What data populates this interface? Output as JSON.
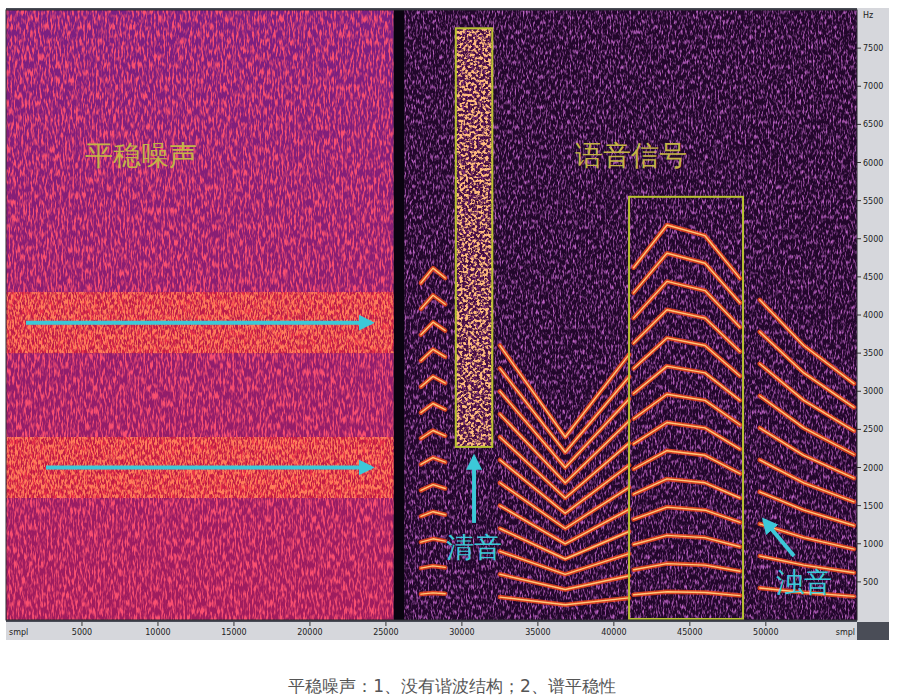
{
  "chart_data": {
    "type": "spectrogram",
    "caption": "平稳噪声：1、没有谐波结构；2、谱平稳性",
    "x_label": "smpl",
    "y_label": "Hz",
    "xlim": [
      0,
      56000
    ],
    "xticks": [
      5000,
      10000,
      15000,
      20000,
      25000,
      30000,
      35000,
      40000,
      45000,
      50000
    ],
    "ylim": [
      0,
      8000
    ],
    "yticks": [
      500,
      1000,
      1500,
      2000,
      2500,
      3000,
      3500,
      4000,
      4500,
      5000,
      5500,
      6000,
      6500,
      7000,
      7500
    ],
    "color": "#f0481c",
    "noise": {
      "label": "平稳噪声",
      "xlim": [
        0,
        25500
      ],
      "bands": [
        [
          1600,
          2400
        ],
        [
          3500,
          4300
        ]
      ]
    },
    "speech": {
      "label": "语音信号",
      "xlim": [
        26200,
        56000
      ]
    },
    "unvoiced": {
      "label": "清音",
      "xlim": [
        29600,
        32000
      ],
      "ylim": [
        2270,
        7760
      ]
    },
    "voiced": {
      "label": "浊音",
      "xlim": [
        41000,
        48500
      ],
      "ylim": [
        0,
        5550
      ]
    },
    "series": [
      {
        "x": [
          27300,
          28100,
          28900
        ],
        "values": [
          340,
          355,
          345
        ]
      },
      {
        "x": [
          27300,
          28100,
          28900
        ],
        "values": [
          680,
          710,
          690
        ]
      },
      {
        "x": [
          27300,
          28100,
          28900
        ],
        "values": [
          1020,
          1065,
          1035
        ]
      },
      {
        "x": [
          27300,
          28100,
          28900
        ],
        "values": [
          1360,
          1420,
          1380
        ]
      },
      {
        "x": [
          27300,
          28100,
          28900
        ],
        "values": [
          1700,
          1775,
          1725
        ]
      },
      {
        "x": [
          27300,
          28100,
          28900
        ],
        "values": [
          2040,
          2130,
          2070
        ]
      },
      {
        "x": [
          27300,
          28100,
          28900
        ],
        "values": [
          2380,
          2485,
          2415
        ]
      },
      {
        "x": [
          27300,
          28100,
          28900
        ],
        "values": [
          2720,
          2840,
          2760
        ]
      },
      {
        "x": [
          27300,
          28100,
          28900
        ],
        "values": [
          3060,
          3195,
          3105
        ]
      },
      {
        "x": [
          27300,
          28100,
          28900
        ],
        "values": [
          3400,
          3550,
          3450
        ]
      },
      {
        "x": [
          27300,
          28100,
          28900
        ],
        "values": [
          3740,
          3905,
          3795
        ]
      },
      {
        "x": [
          27300,
          28100,
          28900
        ],
        "values": [
          4080,
          4260,
          4140
        ]
      },
      {
        "x": [
          27300,
          28100,
          28900
        ],
        "values": [
          4420,
          4615,
          4485
        ]
      },
      {
        "x": [
          32500,
          36800,
          41000
        ],
        "values": [
          300,
          200,
          290
        ]
      },
      {
        "x": [
          32500,
          36800,
          41000
        ],
        "values": [
          600,
          400,
          580
        ]
      },
      {
        "x": [
          32500,
          36800,
          41000
        ],
        "values": [
          900,
          600,
          870
        ]
      },
      {
        "x": [
          32500,
          36800,
          41000
        ],
        "values": [
          1200,
          800,
          1160
        ]
      },
      {
        "x": [
          32500,
          36800,
          41000
        ],
        "values": [
          1500,
          1000,
          1450
        ]
      },
      {
        "x": [
          32500,
          36800,
          41000
        ],
        "values": [
          1800,
          1200,
          1740
        ]
      },
      {
        "x": [
          32500,
          36800,
          41000
        ],
        "values": [
          2100,
          1400,
          2030
        ]
      },
      {
        "x": [
          32500,
          36800,
          41000
        ],
        "values": [
          2400,
          1600,
          2320
        ]
      },
      {
        "x": [
          32500,
          36800,
          41000
        ],
        "values": [
          2700,
          1800,
          2610
        ]
      },
      {
        "x": [
          32500,
          36800,
          41000
        ],
        "values": [
          3000,
          2000,
          2900
        ]
      },
      {
        "x": [
          32500,
          36800,
          41000
        ],
        "values": [
          3300,
          2200,
          3190
        ]
      },
      {
        "x": [
          32500,
          36800,
          41000
        ],
        "values": [
          3600,
          2400,
          3480
        ]
      },
      {
        "x": [
          41300,
          43500,
          46000,
          48300
        ],
        "values": [
          330,
          370,
          360,
          320
        ]
      },
      {
        "x": [
          41300,
          43500,
          46000,
          48300
        ],
        "values": [
          660,
          740,
          720,
          640
        ]
      },
      {
        "x": [
          41300,
          43500,
          46000,
          48300
        ],
        "values": [
          990,
          1110,
          1080,
          960
        ]
      },
      {
        "x": [
          41300,
          43500,
          46000,
          48300
        ],
        "values": [
          1320,
          1480,
          1440,
          1280
        ]
      },
      {
        "x": [
          41300,
          43500,
          46000,
          48300
        ],
        "values": [
          1650,
          1850,
          1800,
          1600
        ]
      },
      {
        "x": [
          41300,
          43500,
          46000,
          48300
        ],
        "values": [
          1980,
          2220,
          2160,
          1920
        ]
      },
      {
        "x": [
          41300,
          43500,
          46000,
          48300
        ],
        "values": [
          2310,
          2590,
          2520,
          2240
        ]
      },
      {
        "x": [
          41300,
          43500,
          46000,
          48300
        ],
        "values": [
          2640,
          2960,
          2880,
          2560
        ]
      },
      {
        "x": [
          41300,
          43500,
          46000,
          48300
        ],
        "values": [
          2970,
          3330,
          3240,
          2880
        ]
      },
      {
        "x": [
          41300,
          43500,
          46000,
          48300
        ],
        "values": [
          3300,
          3700,
          3600,
          3200
        ]
      },
      {
        "x": [
          41300,
          43500,
          46000,
          48300
        ],
        "values": [
          3630,
          4070,
          3960,
          3520
        ]
      },
      {
        "x": [
          41300,
          43500,
          46000,
          48300
        ],
        "values": [
          3960,
          4440,
          4320,
          3840
        ]
      },
      {
        "x": [
          41300,
          43500,
          46000,
          48300
        ],
        "values": [
          4290,
          4810,
          4680,
          4160
        ]
      },
      {
        "x": [
          41300,
          43500,
          46000,
          48300
        ],
        "values": [
          4620,
          5180,
          5040,
          4480
        ]
      },
      {
        "x": [
          49600,
          52500,
          55800
        ],
        "values": [
          420,
          360,
          310
        ]
      },
      {
        "x": [
          49600,
          52500,
          55800
        ],
        "values": [
          840,
          720,
          620
        ]
      },
      {
        "x": [
          49600,
          52500,
          55800
        ],
        "values": [
          1260,
          1080,
          930
        ]
      },
      {
        "x": [
          49600,
          52500,
          55800
        ],
        "values": [
          1680,
          1440,
          1240
        ]
      },
      {
        "x": [
          49600,
          52500,
          55800
        ],
        "values": [
          2100,
          1800,
          1550
        ]
      },
      {
        "x": [
          49600,
          52500,
          55800
        ],
        "values": [
          2520,
          2160,
          1860
        ]
      },
      {
        "x": [
          49600,
          52500,
          55800
        ],
        "values": [
          2940,
          2520,
          2170
        ]
      },
      {
        "x": [
          49600,
          52500,
          55800
        ],
        "values": [
          3360,
          2880,
          2480
        ]
      },
      {
        "x": [
          49600,
          52500,
          55800
        ],
        "values": [
          3780,
          3240,
          2790
        ]
      },
      {
        "x": [
          49600,
          52500,
          55800
        ],
        "values": [
          4200,
          3600,
          3100
        ]
      }
    ]
  }
}
